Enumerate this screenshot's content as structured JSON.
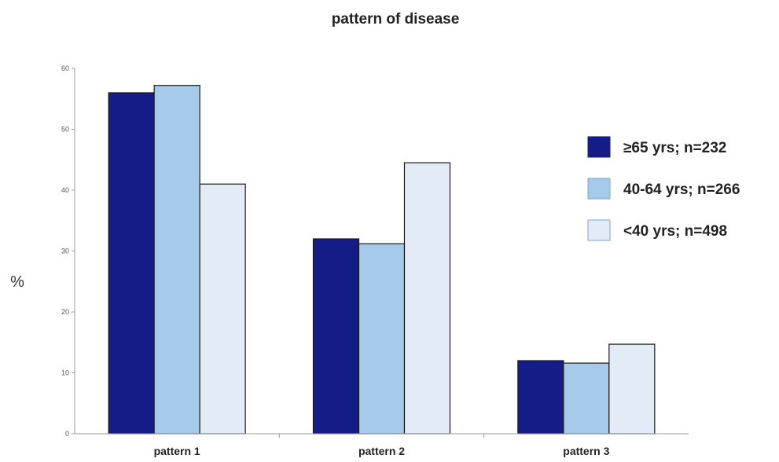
{
  "chart_data": {
    "type": "bar",
    "title": "pattern of disease",
    "ylabel": "%",
    "xlabel": "",
    "ylim": [
      0,
      60
    ],
    "yticks": [
      0,
      10,
      20,
      30,
      40,
      50,
      60
    ],
    "grid": false,
    "legend_position": "right",
    "categories": [
      "pattern 1",
      "pattern 2",
      "pattern 3"
    ],
    "series": [
      {
        "name": "≥65 yrs; n=232",
        "color": "#141C87",
        "values": [
          56,
          32,
          12
        ]
      },
      {
        "name": "40-64 yrs; n=266",
        "color": "#A6CAEA",
        "values": [
          57.2,
          31.2,
          11.6
        ]
      },
      {
        "name": "<40 yrs; n=498",
        "color": "#E3ECF6",
        "values": [
          41,
          44.5,
          14.7
        ]
      }
    ]
  }
}
